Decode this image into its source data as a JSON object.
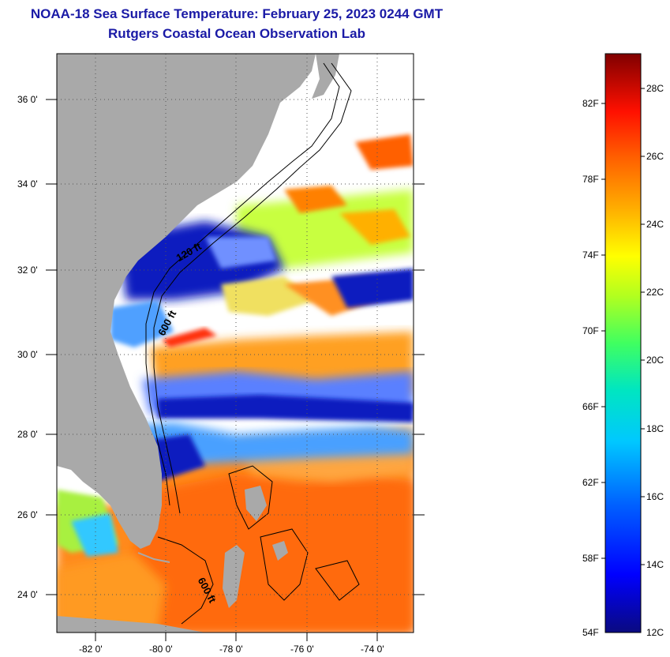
{
  "header": {
    "title": "NOAA-18 Sea Surface Temperature:  February 25, 2023 0244 GMT",
    "subtitle": "Rutgers Coastal Ocean Observation Lab"
  },
  "map": {
    "lon_range": [
      -83,
      -73
    ],
    "lat_range": [
      23,
      37
    ],
    "lat_ticks": [
      "24 0'",
      "26 0'",
      "28 0'",
      "30 0'",
      "32 0'",
      "34 0'",
      "36 0'"
    ],
    "lon_ticks": [
      "-82 0'",
      "-80 0'",
      "-78 0'",
      "-76 0'",
      "-74 0'"
    ],
    "contour_labels": [
      "120 ft",
      "600 ft",
      "600 ft"
    ],
    "colors": {
      "land": "#a9a9a9",
      "cloud": "#ffffff",
      "warm": "#ff7f00",
      "cold": "#0a1fbf"
    }
  },
  "colorbar": {
    "fahrenheit": [
      "82F",
      "78F",
      "74F",
      "70F",
      "66F",
      "62F",
      "58F",
      "54F"
    ],
    "celsius": [
      "28C",
      "26C",
      "24C",
      "22C",
      "20C",
      "18C",
      "16C",
      "14C",
      "12C"
    ]
  }
}
